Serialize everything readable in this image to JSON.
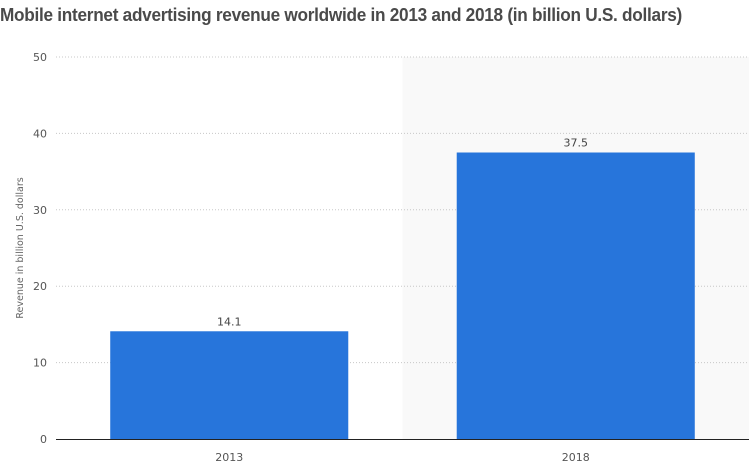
{
  "chart_data": {
    "type": "bar",
    "title": "Mobile internet advertising revenue worldwide in 2013 and 2018 (in billion U.S. dollars)",
    "xlabel": "",
    "ylabel": "Revenue in billion U.S. dollars",
    "categories": [
      "2013",
      "2018"
    ],
    "values": [
      14.1,
      37.5
    ],
    "data_labels": [
      "14.1",
      "37.5"
    ],
    "ylim": [
      0,
      50
    ],
    "yticks": [
      0,
      10,
      20,
      30,
      40,
      50
    ],
    "grid": true,
    "highlighted_category": "2018",
    "bar_color": "#2775db",
    "highlight_background": "#f9f9f9"
  }
}
